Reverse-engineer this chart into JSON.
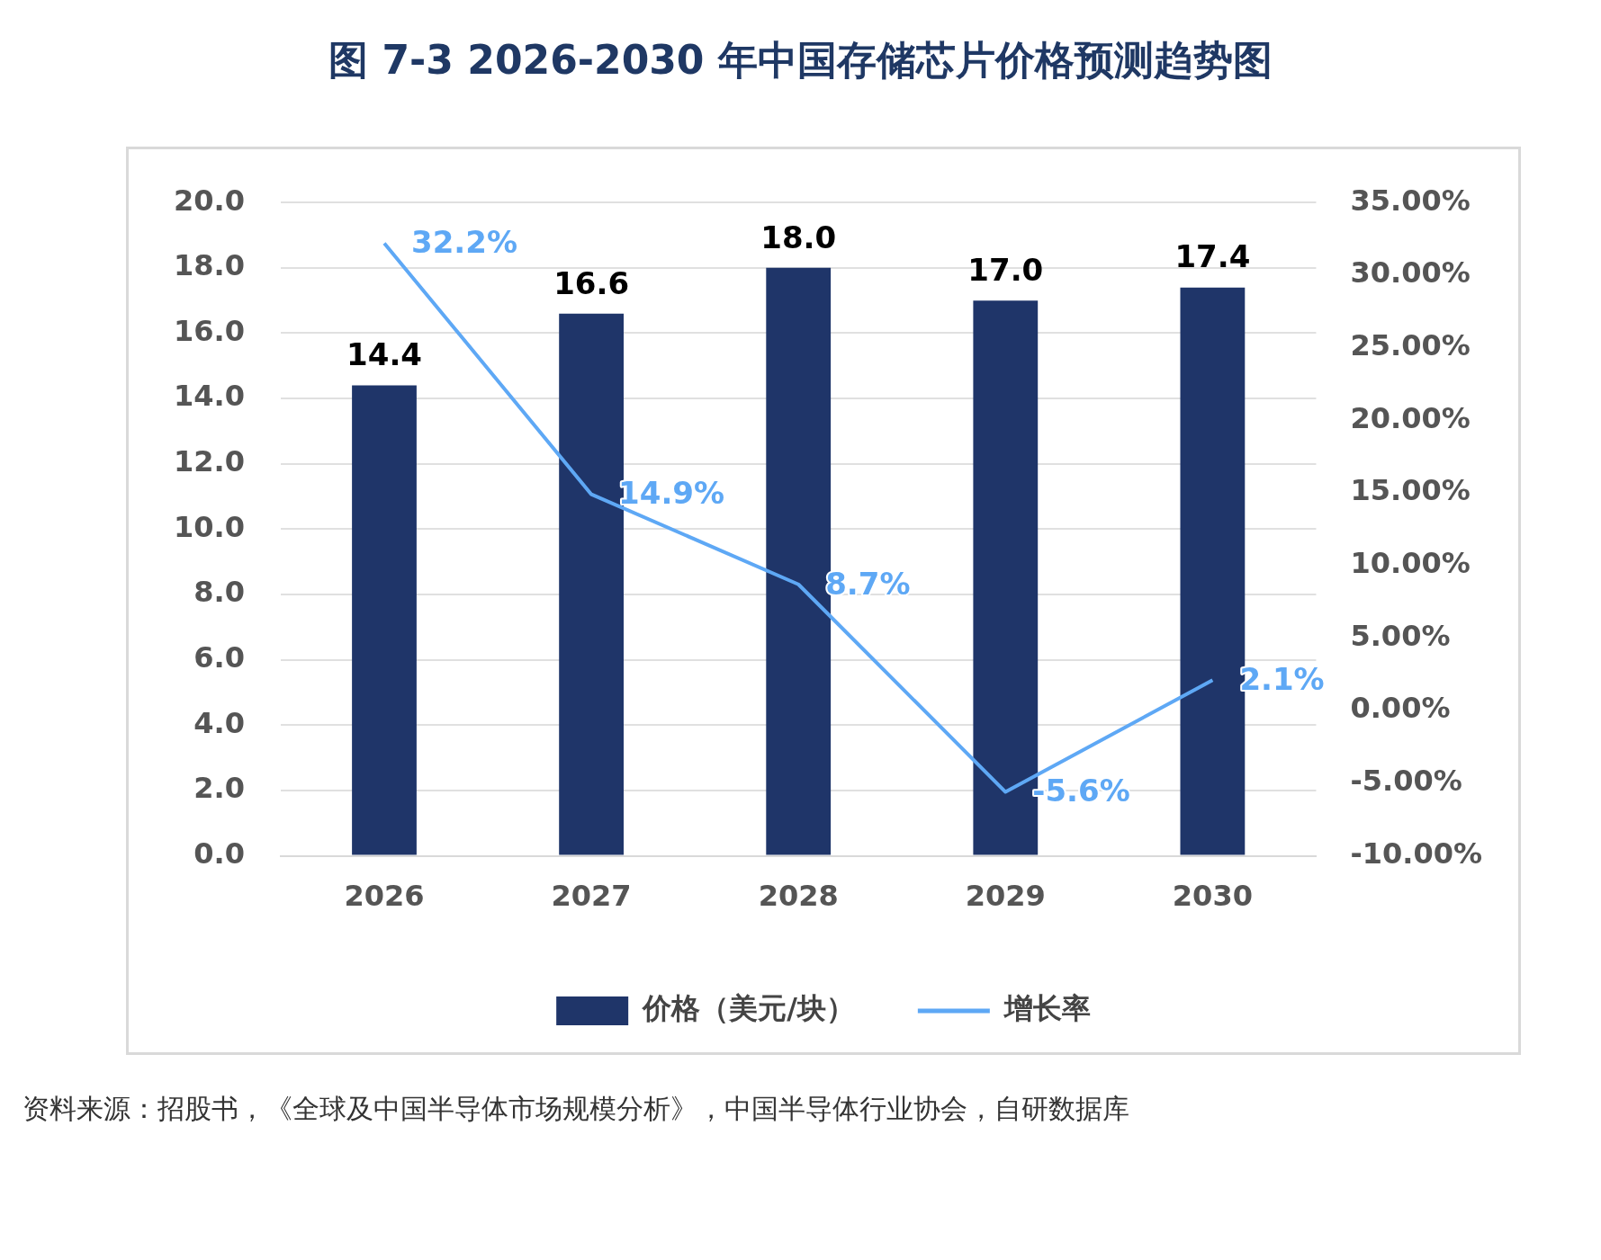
{
  "chart_data": {
    "type": "bar",
    "title": "图  7-3 2026-2030 年中国存储芯片价格预测趋势图",
    "categories": [
      "2026",
      "2027",
      "2028",
      "2029",
      "2030"
    ],
    "series": [
      {
        "name": "价格（美元/块）",
        "color": "#1f3569",
        "values": [
          14.4,
          16.6,
          18.0,
          17.0,
          17.4
        ],
        "value_labels": [
          "14.4",
          "16.6",
          "18.0",
          "17.0",
          "17.4"
        ]
      },
      {
        "name": "增长率",
        "type": "line",
        "axis": "y2",
        "color": "#5ea8f5",
        "values": [
          32.2,
          14.9,
          8.7,
          -5.6,
          2.1
        ],
        "value_labels": [
          "32.2%",
          "14.9%",
          "8.7%",
          "-5.6%",
          "2.1%"
        ]
      }
    ],
    "ylim": [
      0,
      20
    ],
    "yticks": [
      {
        "value": 0,
        "label": "0.0"
      },
      {
        "value": 2,
        "label": "2.0"
      },
      {
        "value": 4,
        "label": "4.0"
      },
      {
        "value": 6,
        "label": "6.0"
      },
      {
        "value": 8,
        "label": "8.0"
      },
      {
        "value": 10,
        "label": "10.0"
      },
      {
        "value": 12,
        "label": "12.0"
      },
      {
        "value": 14,
        "label": "14.0"
      },
      {
        "value": 16,
        "label": "16.0"
      },
      {
        "value": 18,
        "label": "18.0"
      },
      {
        "value": 20,
        "label": "20.0"
      }
    ],
    "y2lim": [
      -10,
      35
    ],
    "y2ticks": [
      {
        "value": -10,
        "label": "-10.00%"
      },
      {
        "value": -5,
        "label": "-5.00%"
      },
      {
        "value": 0,
        "label": "0.00%"
      },
      {
        "value": 5,
        "label": "5.00%"
      },
      {
        "value": 10,
        "label": "10.00%"
      },
      {
        "value": 15,
        "label": "15.00%"
      },
      {
        "value": 20,
        "label": "20.00%"
      },
      {
        "value": 25,
        "label": "25.00%"
      },
      {
        "value": 30,
        "label": "30.00%"
      },
      {
        "value": 35,
        "label": "35.00%"
      }
    ],
    "grid": "y",
    "legend": "bottom",
    "marker": "none",
    "annotations": [
      "资料来源：招股书，《全球及中国半导体市场规模分析》，中国半导体行业协会，自研数据库"
    ]
  }
}
